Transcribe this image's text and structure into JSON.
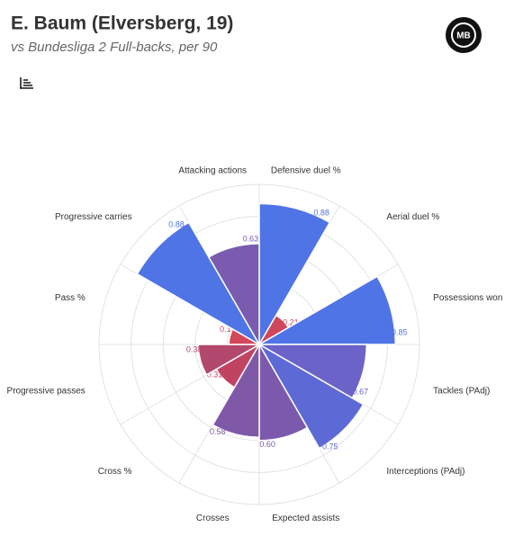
{
  "header": {
    "logo": "MB"
  },
  "chart_data": {
    "type": "polar-bar",
    "title": "E. Baum (Elversberg, 19)",
    "subtitle": "vs Bundesliga 2 Full-backs, per 90",
    "categories": [
      "Defensive duel %",
      "Aerial duel %",
      "Possessions won",
      "Tackles (PAdj)",
      "Interceptions (PAdj)",
      "Expected assists",
      "Crosses",
      "Cross %",
      "Progressive passes",
      "Pass %",
      "Progressive carries",
      "Attacking actions"
    ],
    "values": [
      0.88,
      0.21,
      0.85,
      0.67,
      0.75,
      0.6,
      0.58,
      0.31,
      0.38,
      0.19,
      0.88,
      0.63
    ],
    "value_labels": [
      "0.88",
      "0.21",
      "0.85",
      "0.67",
      "0.75",
      "0.60",
      "0.58",
      "0.31",
      "0.38",
      "0.19",
      "0.88",
      "0.63"
    ],
    "colors": [
      "#4f74e6",
      "#d0465a",
      "#4f74e6",
      "#6b63c8",
      "#5d6ad6",
      "#7b5aae",
      "#7f58a8",
      "#c04462",
      "#b2486d",
      "#d4475a",
      "#4f74e6",
      "#7a5bb0"
    ],
    "rlim": [
      0,
      1
    ],
    "rticks": [
      0.2,
      0.4,
      0.6,
      0.8,
      1
    ],
    "grid": true
  }
}
